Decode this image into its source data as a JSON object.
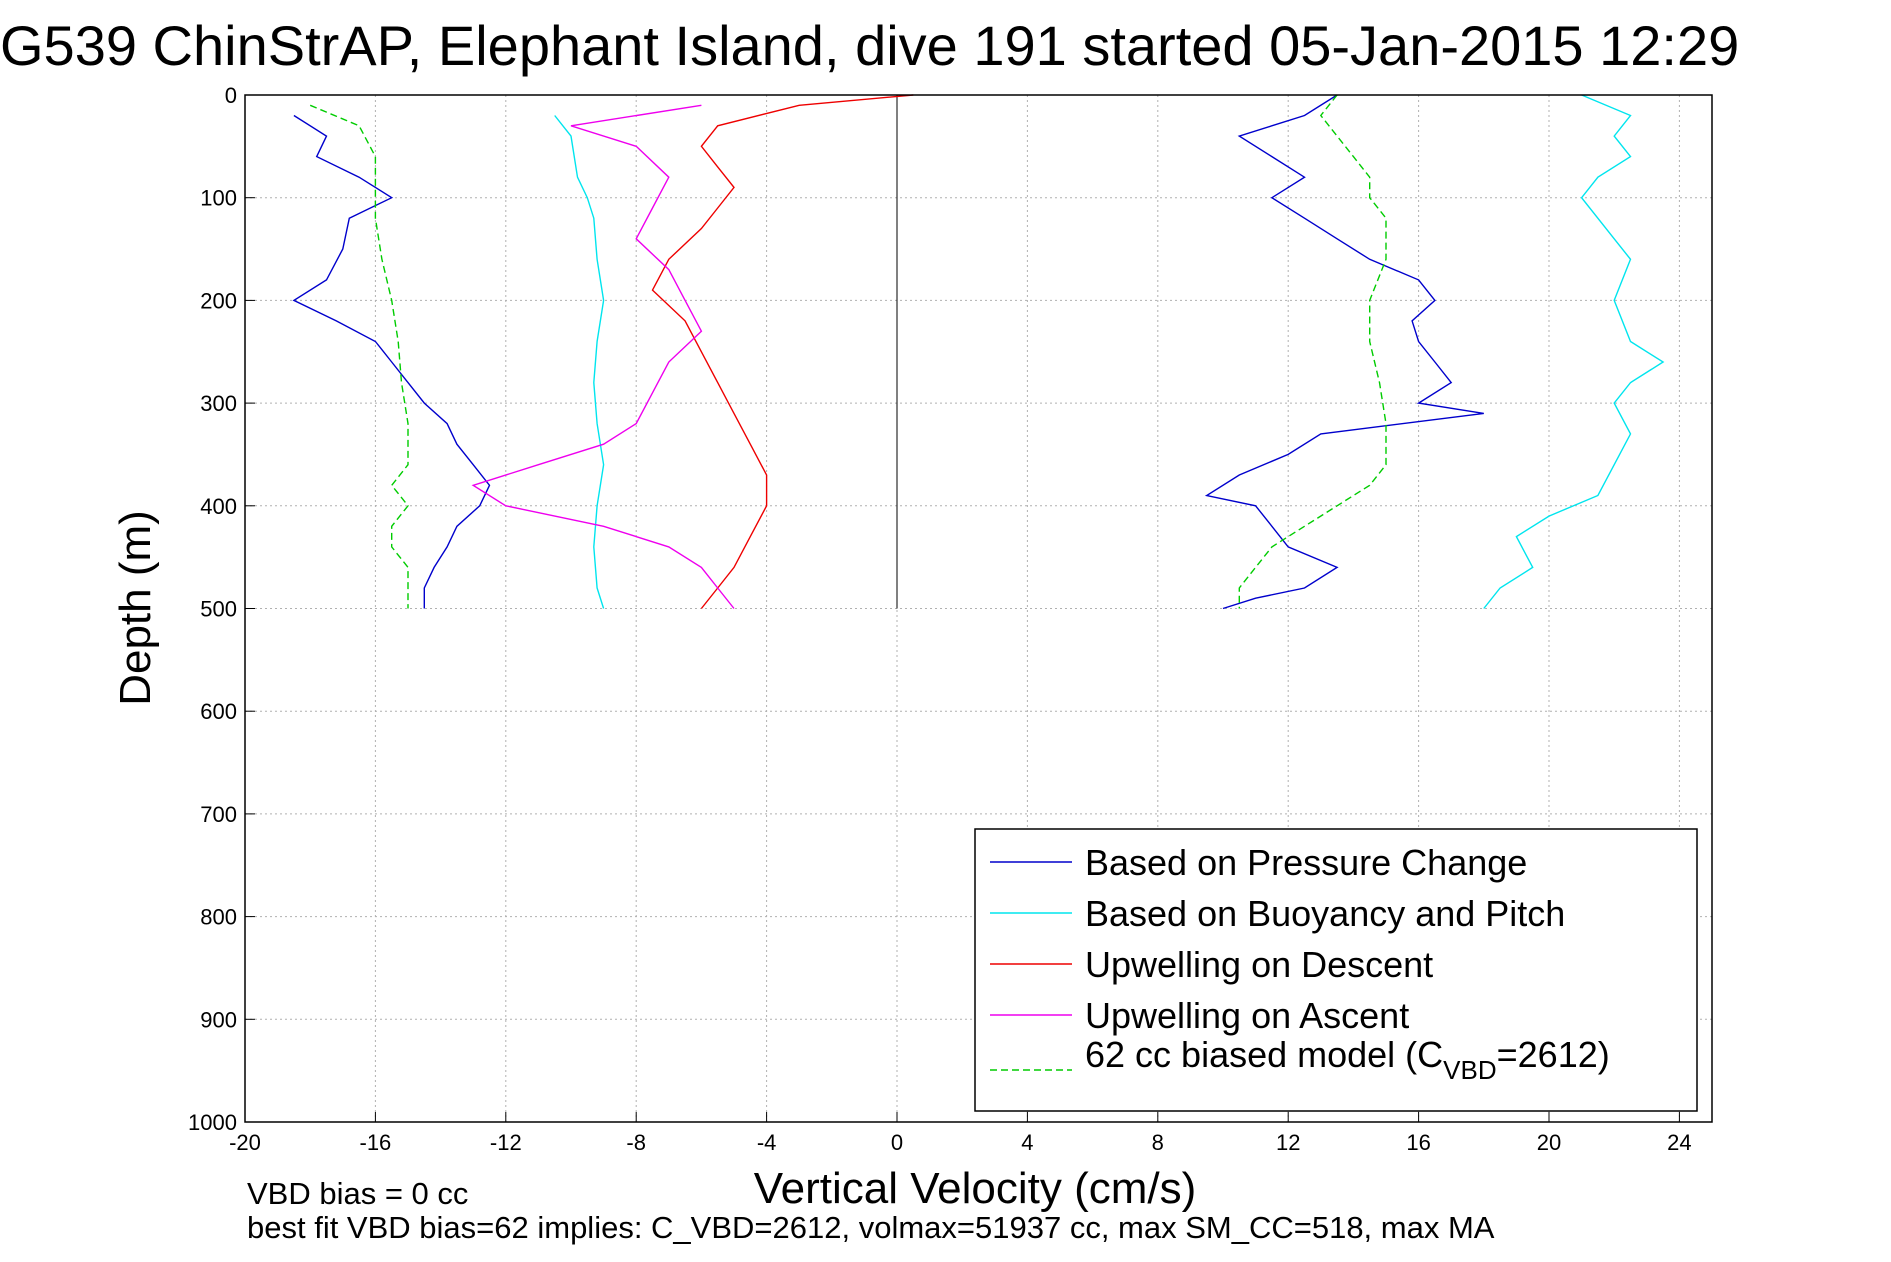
{
  "chart_data": {
    "type": "line",
    "title": "G539 ChinStrAP, Elephant Island, dive 191 started 05-Jan-2015 12:29",
    "xlabel": "Vertical Velocity (cm/s)",
    "ylabel": "Depth (m)",
    "xlim": [
      -20,
      25
    ],
    "ylim": [
      0,
      1000
    ],
    "y_reversed": true,
    "grid": true,
    "x_ticks": [
      "-20",
      "-16",
      "-12",
      "-8",
      "-4",
      "0",
      "4",
      "8",
      "12",
      "16",
      "20",
      "24"
    ],
    "y_ticks": [
      "0",
      "100",
      "200",
      "300",
      "400",
      "500",
      "600",
      "700",
      "800",
      "900",
      "1000"
    ],
    "legend_position": "bottom-right",
    "series": [
      {
        "name": "Based on Pressure Change",
        "color": "#0000cc",
        "style": "solid",
        "descent": [
          [
            -18.5,
            20
          ],
          [
            -17.5,
            40
          ],
          [
            -17.8,
            60
          ],
          [
            -16.5,
            80
          ],
          [
            -15.5,
            100
          ],
          [
            -16.8,
            120
          ],
          [
            -17.0,
            150
          ],
          [
            -17.5,
            180
          ],
          [
            -18.5,
            200
          ],
          [
            -17.2,
            220
          ],
          [
            -16.0,
            240
          ],
          [
            -15.5,
            260
          ],
          [
            -15.0,
            280
          ],
          [
            -14.5,
            300
          ],
          [
            -13.8,
            320
          ],
          [
            -13.5,
            340
          ],
          [
            -13.0,
            360
          ],
          [
            -12.5,
            380
          ],
          [
            -12.8,
            400
          ],
          [
            -13.5,
            420
          ],
          [
            -13.8,
            440
          ],
          [
            -14.2,
            460
          ],
          [
            -14.5,
            480
          ],
          [
            -14.5,
            500
          ]
        ],
        "ascent": [
          [
            13.5,
            0
          ],
          [
            12.5,
            20
          ],
          [
            10.5,
            40
          ],
          [
            11.5,
            60
          ],
          [
            12.5,
            80
          ],
          [
            11.5,
            100
          ],
          [
            12.5,
            120
          ],
          [
            13.5,
            140
          ],
          [
            14.5,
            160
          ],
          [
            16.0,
            180
          ],
          [
            16.5,
            200
          ],
          [
            15.8,
            220
          ],
          [
            16.0,
            240
          ],
          [
            16.5,
            260
          ],
          [
            17.0,
            280
          ],
          [
            16.0,
            300
          ],
          [
            18.0,
            310
          ],
          [
            13.0,
            330
          ],
          [
            12.0,
            350
          ],
          [
            10.5,
            370
          ],
          [
            9.5,
            390
          ],
          [
            11.0,
            400
          ],
          [
            11.5,
            420
          ],
          [
            12.0,
            440
          ],
          [
            13.5,
            460
          ],
          [
            12.5,
            480
          ],
          [
            11.0,
            490
          ],
          [
            10.0,
            500
          ]
        ]
      },
      {
        "name": "Based on Buoyancy and Pitch",
        "color": "#00e5ee",
        "style": "solid",
        "descent": [
          [
            -10.5,
            20
          ],
          [
            -10.0,
            40
          ],
          [
            -9.8,
            80
          ],
          [
            -9.5,
            100
          ],
          [
            -9.3,
            120
          ],
          [
            -9.2,
            160
          ],
          [
            -9.0,
            200
          ],
          [
            -9.2,
            240
          ],
          [
            -9.3,
            280
          ],
          [
            -9.2,
            320
          ],
          [
            -9.0,
            360
          ],
          [
            -9.2,
            400
          ],
          [
            -9.3,
            440
          ],
          [
            -9.2,
            480
          ],
          [
            -9.0,
            500
          ]
        ],
        "ascent": [
          [
            21.0,
            0
          ],
          [
            22.5,
            20
          ],
          [
            22.0,
            40
          ],
          [
            22.5,
            60
          ],
          [
            21.5,
            80
          ],
          [
            21.0,
            100
          ],
          [
            22.0,
            140
          ],
          [
            22.5,
            160
          ],
          [
            22.0,
            200
          ],
          [
            22.5,
            240
          ],
          [
            23.5,
            260
          ],
          [
            22.5,
            280
          ],
          [
            22.0,
            300
          ],
          [
            22.5,
            330
          ],
          [
            22.0,
            360
          ],
          [
            21.5,
            390
          ],
          [
            20.0,
            410
          ],
          [
            19.0,
            430
          ],
          [
            19.5,
            460
          ],
          [
            18.5,
            480
          ],
          [
            18.0,
            500
          ]
        ]
      },
      {
        "name": "Upwelling on Descent",
        "color": "#ee0000",
        "style": "solid",
        "values": [
          [
            0.5,
            0
          ],
          [
            -3.0,
            10
          ],
          [
            -5.5,
            30
          ],
          [
            -6.0,
            50
          ],
          [
            -5.5,
            70
          ],
          [
            -5.0,
            90
          ],
          [
            -5.5,
            110
          ],
          [
            -6.0,
            130
          ],
          [
            -7.0,
            160
          ],
          [
            -7.5,
            190
          ],
          [
            -6.5,
            220
          ],
          [
            -6.0,
            250
          ],
          [
            -5.5,
            280
          ],
          [
            -5.0,
            310
          ],
          [
            -4.5,
            340
          ],
          [
            -4.0,
            370
          ],
          [
            -4.0,
            400
          ],
          [
            -4.5,
            430
          ],
          [
            -5.0,
            460
          ],
          [
            -5.5,
            480
          ],
          [
            -6.0,
            500
          ]
        ]
      },
      {
        "name": "Upwelling on Ascent",
        "color": "#ee00ee",
        "style": "solid",
        "values": [
          [
            -6.0,
            10
          ],
          [
            -10.0,
            30
          ],
          [
            -8.0,
            50
          ],
          [
            -7.0,
            80
          ],
          [
            -7.5,
            110
          ],
          [
            -8.0,
            140
          ],
          [
            -7.0,
            170
          ],
          [
            -6.5,
            200
          ],
          [
            -6.0,
            230
          ],
          [
            -7.0,
            260
          ],
          [
            -7.5,
            290
          ],
          [
            -8.0,
            320
          ],
          [
            -9.0,
            340
          ],
          [
            -11.0,
            360
          ],
          [
            -13.0,
            380
          ],
          [
            -12.0,
            400
          ],
          [
            -9.0,
            420
          ],
          [
            -7.0,
            440
          ],
          [
            -6.0,
            460
          ],
          [
            -5.5,
            480
          ],
          [
            -5.0,
            500
          ]
        ]
      },
      {
        "name": "62 cc biased model (C_VBD=2612)",
        "color": "#00cc00",
        "style": "dashed",
        "descent": [
          [
            -18.0,
            10
          ],
          [
            -16.5,
            30
          ],
          [
            -16.0,
            60
          ],
          [
            -16.0,
            90
          ],
          [
            -16.0,
            120
          ],
          [
            -15.8,
            160
          ],
          [
            -15.5,
            200
          ],
          [
            -15.3,
            240
          ],
          [
            -15.2,
            280
          ],
          [
            -15.0,
            320
          ],
          [
            -15.0,
            360
          ],
          [
            -15.5,
            380
          ],
          [
            -15.0,
            400
          ],
          [
            -15.5,
            420
          ],
          [
            -15.5,
            440
          ],
          [
            -15.0,
            460
          ],
          [
            -15.0,
            480
          ],
          [
            -15.0,
            500
          ]
        ],
        "ascent": [
          [
            13.5,
            0
          ],
          [
            13.0,
            20
          ],
          [
            13.5,
            40
          ],
          [
            14.0,
            60
          ],
          [
            14.5,
            80
          ],
          [
            14.5,
            100
          ],
          [
            15.0,
            120
          ],
          [
            15.0,
            160
          ],
          [
            14.5,
            200
          ],
          [
            14.5,
            240
          ],
          [
            14.8,
            280
          ],
          [
            15.0,
            320
          ],
          [
            15.0,
            360
          ],
          [
            14.5,
            380
          ],
          [
            13.5,
            400
          ],
          [
            12.5,
            420
          ],
          [
            11.5,
            440
          ],
          [
            11.0,
            460
          ],
          [
            10.5,
            480
          ],
          [
            10.5,
            500
          ]
        ]
      }
    ],
    "legend_entries": [
      "Based on Pressure Change",
      "Based on Buoyancy and Pitch",
      "Upwelling on Descent",
      "Upwelling on Ascent"
    ],
    "legend_last": {
      "prefix": "62 cc biased model (C",
      "subscript": "VBD",
      "suffix": "=2612)"
    },
    "footer_lines": [
      "VBD bias = 0 cc",
      "best fit VBD bias=62 implies: C_VBD=2612, volmax=51937 cc, max SM_CC=518, max MA"
    ]
  }
}
